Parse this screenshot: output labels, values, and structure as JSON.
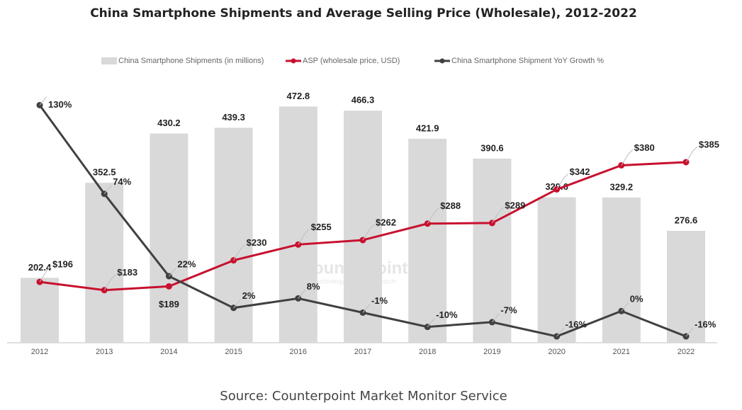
{
  "chart_data": {
    "type": "bar-line",
    "title": "China Smartphone Shipments and Average Selling Price (Wholesale), 2012-2022",
    "source": "Source: Counterpoint Market Monitor Service",
    "watermark": "Counterpoint",
    "watermark_sub": "Technology Market Research",
    "categories": [
      "2012",
      "2013",
      "2014",
      "2015",
      "2016",
      "2017",
      "2018",
      "2019",
      "2020",
      "2021",
      "2022"
    ],
    "ylim": [
      100,
      480
    ],
    "y2lim": [
      100,
      480
    ],
    "y3lim": [
      -20,
      132
    ],
    "series": [
      {
        "name": "China Smartphone Shipments (in millions)",
        "type": "bar",
        "color": "#d9d9d9",
        "values": [
          202.4,
          352.5,
          430.2,
          439.3,
          472.8,
          466.3,
          421.9,
          390.6,
          329.6,
          329.2,
          276.6
        ]
      },
      {
        "name": "ASP (wholesale price, USD)",
        "type": "line",
        "axis": "y2",
        "color": "#c8102e",
        "values": [
          196,
          183,
          189,
          230,
          255,
          262,
          288,
          289,
          342,
          380,
          385
        ],
        "value_labels": [
          "$196",
          "$183",
          "$189",
          "$230",
          "$255",
          "$262",
          "$288",
          "$289",
          "$342",
          "$380",
          "$385"
        ]
      },
      {
        "name": "China Smartphone Shipment YoY Growth %",
        "type": "line",
        "axis": "y3",
        "color": "#404040",
        "values": [
          130,
          74,
          22,
          2,
          8,
          -1,
          -10,
          -7,
          -16,
          0,
          -16
        ],
        "value_labels": [
          "130%",
          "74%",
          "22%",
          "2%",
          "8%",
          "-1%",
          "-10%",
          "-7%",
          "-16%",
          "0%",
          "-16%"
        ]
      }
    ]
  }
}
